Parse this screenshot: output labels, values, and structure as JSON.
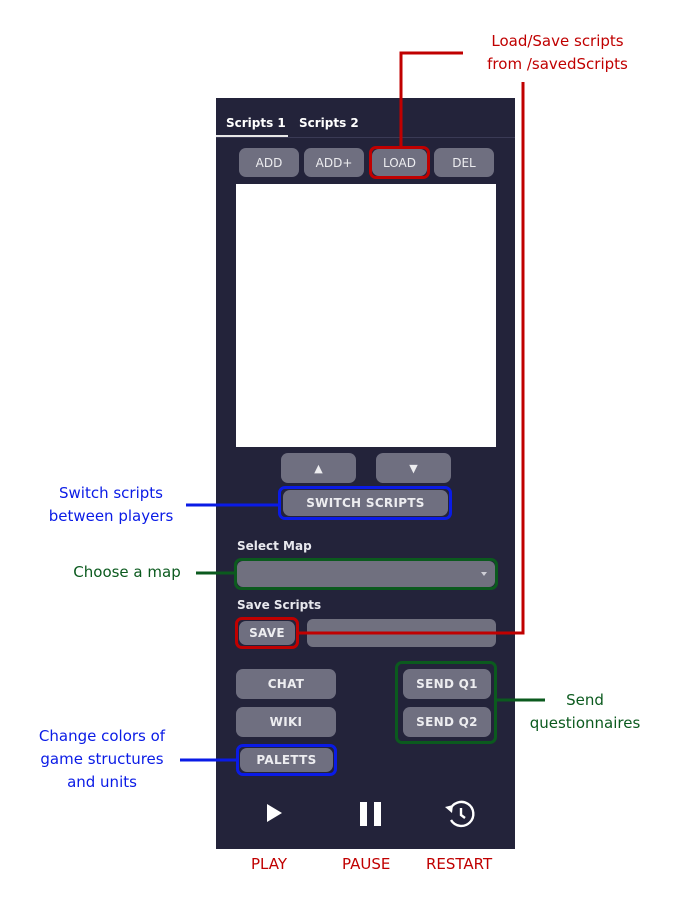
{
  "tabs": [
    "Scripts 1",
    "Scripts 2"
  ],
  "script_buttons": {
    "add": "ADD",
    "add_plus": "ADD+",
    "load": "LOAD",
    "del": "DEL"
  },
  "arrows": {
    "up": "▲",
    "down": "▼"
  },
  "switch_scripts": "SWITCH SCRIPTS",
  "select_map": {
    "label": "Select Map",
    "value": ""
  },
  "save_scripts": {
    "label": "Save Scripts",
    "button": "SAVE",
    "input_value": ""
  },
  "side_buttons": {
    "chat": "CHAT",
    "wiki": "WIKI",
    "paletts": "PALETTS"
  },
  "send_buttons": {
    "q1": "SEND Q1",
    "q2": "SEND Q2"
  },
  "controls": {
    "play": "PLAY",
    "pause": "PAUSE",
    "restart": "RESTART"
  },
  "annotations": {
    "load_save_line1": "Load/Save scripts",
    "load_save_line2": "from /savedScripts",
    "switch_line1": "Switch scripts",
    "switch_line2": "between players",
    "choose_map": "Choose a map",
    "send_line1": "Send",
    "send_line2": "questionnaires",
    "colors_line1": "Change colors of",
    "colors_line2": "game structures",
    "colors_line3": "and units"
  },
  "icons": {
    "play": "play-icon",
    "pause": "pause-icon",
    "restart": "restart-icon",
    "dropdown": "chevron-down-icon"
  },
  "colors": {
    "panel_bg": "#23233a",
    "button_bg": "#6f6f80",
    "annotation_red": "#c00000",
    "annotation_blue": "#0a1be6",
    "annotation_green": "#0b5a1e"
  }
}
